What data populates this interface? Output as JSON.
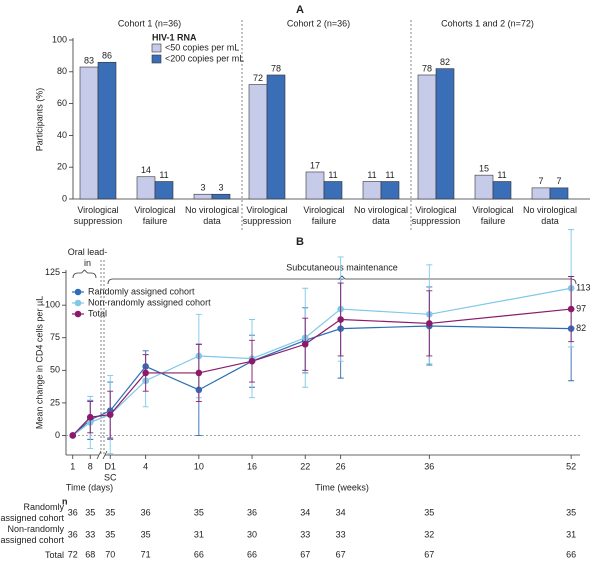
{
  "chart_data": [
    {
      "type": "bar",
      "panel": "A",
      "ylabel": "Participants (%)",
      "ylim": [
        0,
        100
      ],
      "yticks": [
        0,
        20,
        40,
        60,
        80,
        100
      ],
      "legend_title": "HIV-1 RNA",
      "categories": [
        "Virological suppression",
        "Virological failure",
        "No virological data"
      ],
      "series": [
        {
          "name": "<50 copies per mL",
          "color": "#c6cbea"
        },
        {
          "name": "<200 copies per mL",
          "color": "#3a6fb8"
        }
      ],
      "groups": [
        {
          "title": "Cohort 1 (n=36)",
          "values": [
            [
              83,
              14,
              3
            ],
            [
              86,
              11,
              3
            ]
          ]
        },
        {
          "title": "Cohort 2 (n=36)",
          "values": [
            [
              72,
              17,
              11
            ],
            [
              78,
              11,
              11
            ]
          ]
        },
        {
          "title": "Cohorts 1 and 2 (n=72)",
          "values": [
            [
              78,
              15,
              7
            ],
            [
              82,
              11,
              7
            ]
          ]
        }
      ]
    },
    {
      "type": "line",
      "panel": "B",
      "ylabel": "Mean change in CD4 cells per µL",
      "annotations": [
        "Oral lead-in",
        "Subcutaneous maintenance"
      ],
      "ylim": [
        -15,
        127
      ],
      "yticks": [
        0,
        25,
        50,
        75,
        100,
        125
      ],
      "days": {
        "xlabel": "Time (days)",
        "xlim": [
          -1.7,
          12.3
        ],
        "xticks": [
          1,
          8
        ]
      },
      "weeks": {
        "xlabel": "Time (weeks)",
        "xlim": [
          -0.7,
          53
        ],
        "xticks": [
          {
            "value": 0,
            "label": "D1"
          },
          4,
          10,
          16,
          22,
          26,
          36,
          52
        ],
        "sublabel": "SC"
      },
      "series": [
        {
          "name": "Randomly assigned cohort",
          "color": "#2e6db4",
          "values": [
            0,
            12,
            19,
            53,
            35,
            57,
            73,
            82,
            84,
            82
          ],
          "errors": [
            0,
            15,
            22,
            12,
            35,
            20,
            25,
            38,
            30,
            40
          ]
        },
        {
          "name": "Non-randomly assigned cohort",
          "color": "#7fc8e8",
          "values": [
            0,
            10,
            16,
            42,
            61,
            59,
            75,
            97,
            93,
            113
          ],
          "errors": [
            0,
            20,
            30,
            20,
            32,
            30,
            38,
            40,
            38,
            45
          ]
        },
        {
          "name": "Total",
          "color": "#8b1a6b",
          "values": [
            0,
            14,
            16,
            48,
            48,
            57,
            70,
            89,
            86,
            97
          ],
          "errors": [
            0,
            12,
            18,
            14,
            22,
            16,
            20,
            28,
            25,
            25
          ]
        }
      ],
      "table": {
        "title": "n",
        "rows": [
          {
            "label": "Randomly assigned cohort",
            "values": [
              36,
              35,
              35,
              36,
              35,
              36,
              34,
              34,
              35,
              35
            ]
          },
          {
            "label": "Non-randomly assigned cohort",
            "values": [
              36,
              33,
              35,
              35,
              31,
              30,
              33,
              33,
              32,
              31
            ]
          },
          {
            "label": "Total",
            "values": [
              72,
              68,
              70,
              71,
              66,
              66,
              67,
              67,
              67,
              66
            ]
          }
        ]
      }
    }
  ]
}
